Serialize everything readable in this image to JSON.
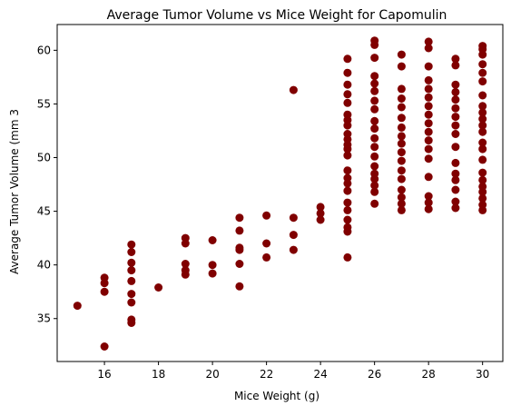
{
  "chart_data": {
    "type": "scatter",
    "title": "Average Tumor Volume vs Mice Weight for Capomulin",
    "xlabel": "Mice Weight (g)",
    "ylabel": "Average Tumor Volume (mm 3",
    "xlim": [
      14.25,
      30.75
    ],
    "ylim": [
      31.0,
      62.4
    ],
    "xticks": [
      16,
      18,
      20,
      22,
      24,
      26,
      28,
      30
    ],
    "yticks": [
      35,
      40,
      45,
      50,
      55,
      60
    ],
    "grid": false,
    "legend": "none",
    "marker_color": "#800000",
    "points": [
      [
        15,
        36.2
      ],
      [
        16,
        32.4
      ],
      [
        16,
        37.5
      ],
      [
        16,
        38.3
      ],
      [
        16,
        38.8
      ],
      [
        17,
        34.6
      ],
      [
        17,
        34.9
      ],
      [
        17,
        36.5
      ],
      [
        17,
        37.3
      ],
      [
        17,
        38.5
      ],
      [
        17,
        39.5
      ],
      [
        17,
        40.2
      ],
      [
        17,
        41.2
      ],
      [
        17,
        41.9
      ],
      [
        18,
        37.9
      ],
      [
        19,
        39.1
      ],
      [
        19,
        39.5
      ],
      [
        19,
        40.1
      ],
      [
        19,
        42.0
      ],
      [
        19,
        42.5
      ],
      [
        20,
        39.2
      ],
      [
        20,
        40.0
      ],
      [
        20,
        42.3
      ],
      [
        21,
        38.0
      ],
      [
        21,
        40.1
      ],
      [
        21,
        41.4
      ],
      [
        21,
        41.6
      ],
      [
        21,
        43.2
      ],
      [
        21,
        44.4
      ],
      [
        22,
        40.7
      ],
      [
        22,
        42.0
      ],
      [
        22,
        44.6
      ],
      [
        23,
        41.4
      ],
      [
        23,
        42.8
      ],
      [
        23,
        44.4
      ],
      [
        23,
        56.3
      ],
      [
        24,
        44.2
      ],
      [
        24,
        44.8
      ],
      [
        24,
        45.4
      ],
      [
        25,
        40.7
      ],
      [
        25,
        43.1
      ],
      [
        25,
        43.5
      ],
      [
        25,
        44.2
      ],
      [
        25,
        45.1
      ],
      [
        25,
        45.8
      ],
      [
        25,
        46.9
      ],
      [
        25,
        47.6
      ],
      [
        25,
        48.1
      ],
      [
        25,
        48.8
      ],
      [
        25,
        50.2
      ],
      [
        25,
        50.8
      ],
      [
        25,
        51.2
      ],
      [
        25,
        51.7
      ],
      [
        25,
        52.2
      ],
      [
        25,
        53.0
      ],
      [
        25,
        53.5
      ],
      [
        25,
        54.0
      ],
      [
        25,
        55.1
      ],
      [
        25,
        55.9
      ],
      [
        25,
        56.8
      ],
      [
        25,
        57.9
      ],
      [
        25,
        59.2
      ],
      [
        26,
        45.7
      ],
      [
        26,
        46.8
      ],
      [
        26,
        47.4
      ],
      [
        26,
        48.0
      ],
      [
        26,
        48.5
      ],
      [
        26,
        49.2
      ],
      [
        26,
        50.1
      ],
      [
        26,
        51.0
      ],
      [
        26,
        51.8
      ],
      [
        26,
        52.7
      ],
      [
        26,
        53.4
      ],
      [
        26,
        54.5
      ],
      [
        26,
        55.3
      ],
      [
        26,
        56.2
      ],
      [
        26,
        56.9
      ],
      [
        26,
        57.6
      ],
      [
        26,
        59.3
      ],
      [
        26,
        60.5
      ],
      [
        26,
        60.9
      ],
      [
        27,
        45.1
      ],
      [
        27,
        45.7
      ],
      [
        27,
        46.3
      ],
      [
        27,
        47.0
      ],
      [
        27,
        48.0
      ],
      [
        27,
        48.8
      ],
      [
        27,
        49.7
      ],
      [
        27,
        50.5
      ],
      [
        27,
        51.3
      ],
      [
        27,
        52.0
      ],
      [
        27,
        52.8
      ],
      [
        27,
        53.7
      ],
      [
        27,
        54.7
      ],
      [
        27,
        55.5
      ],
      [
        27,
        56.4
      ],
      [
        27,
        58.5
      ],
      [
        27,
        59.6
      ],
      [
        28,
        45.2
      ],
      [
        28,
        45.8
      ],
      [
        28,
        46.4
      ],
      [
        28,
        48.2
      ],
      [
        28,
        49.9
      ],
      [
        28,
        50.8
      ],
      [
        28,
        51.6
      ],
      [
        28,
        52.4
      ],
      [
        28,
        53.2
      ],
      [
        28,
        54.0
      ],
      [
        28,
        54.8
      ],
      [
        28,
        55.6
      ],
      [
        28,
        56.4
      ],
      [
        28,
        57.2
      ],
      [
        28,
        58.5
      ],
      [
        28,
        60.2
      ],
      [
        28,
        60.8
      ],
      [
        29,
        45.3
      ],
      [
        29,
        45.9
      ],
      [
        29,
        47.0
      ],
      [
        29,
        47.9
      ],
      [
        29,
        48.5
      ],
      [
        29,
        49.5
      ],
      [
        29,
        51.0
      ],
      [
        29,
        52.2
      ],
      [
        29,
        53.0
      ],
      [
        29,
        53.8
      ],
      [
        29,
        54.6
      ],
      [
        29,
        55.4
      ],
      [
        29,
        56.1
      ],
      [
        29,
        56.8
      ],
      [
        29,
        58.6
      ],
      [
        29,
        59.2
      ],
      [
        30,
        45.1
      ],
      [
        30,
        45.6
      ],
      [
        30,
        46.2
      ],
      [
        30,
        46.8
      ],
      [
        30,
        47.3
      ],
      [
        30,
        47.9
      ],
      [
        30,
        48.6
      ],
      [
        30,
        49.8
      ],
      [
        30,
        50.8
      ],
      [
        30,
        51.4
      ],
      [
        30,
        52.4
      ],
      [
        30,
        53.0
      ],
      [
        30,
        53.6
      ],
      [
        30,
        54.2
      ],
      [
        30,
        54.8
      ],
      [
        30,
        55.8
      ],
      [
        30,
        57.1
      ],
      [
        30,
        57.9
      ],
      [
        30,
        58.7
      ],
      [
        30,
        59.6
      ],
      [
        30,
        60.1
      ],
      [
        30,
        60.4
      ]
    ]
  }
}
